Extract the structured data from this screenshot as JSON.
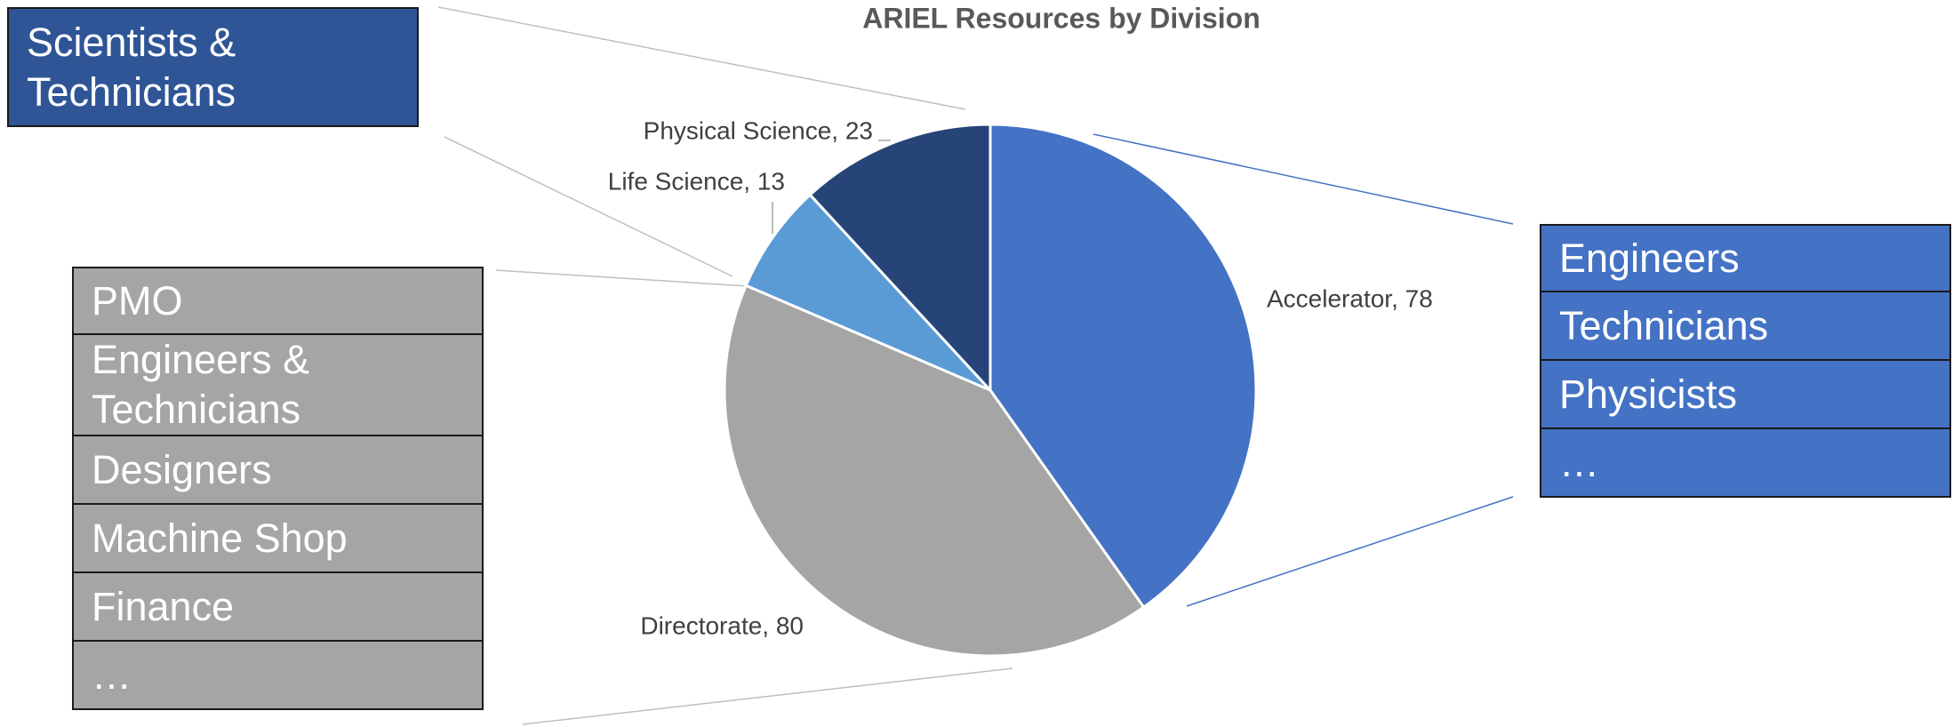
{
  "chart_data": {
    "type": "pie",
    "title": "ARIEL Resources by Division",
    "categories": [
      "Accelerator",
      "Directorate",
      "Life Science",
      "Physical Science"
    ],
    "values": [
      78,
      80,
      13,
      23
    ],
    "value_labels": [
      "Accelerator, 78",
      "Directorate, 80",
      "Life Science, 13",
      "Physical Science, 23"
    ],
    "colors": [
      "#4472c4",
      "#a5a5a5",
      "#5b9bd5",
      "#264478"
    ]
  },
  "boxes": {
    "top_left": {
      "items": [
        "Scientists & Technicians"
      ]
    },
    "left": {
      "items": [
        "PMO",
        "Engineers & Technicians",
        "Designers",
        "Machine Shop",
        "Finance",
        "…"
      ]
    },
    "right": {
      "items": [
        "Engineers",
        "Technicians",
        "Physicists",
        "…"
      ]
    }
  }
}
